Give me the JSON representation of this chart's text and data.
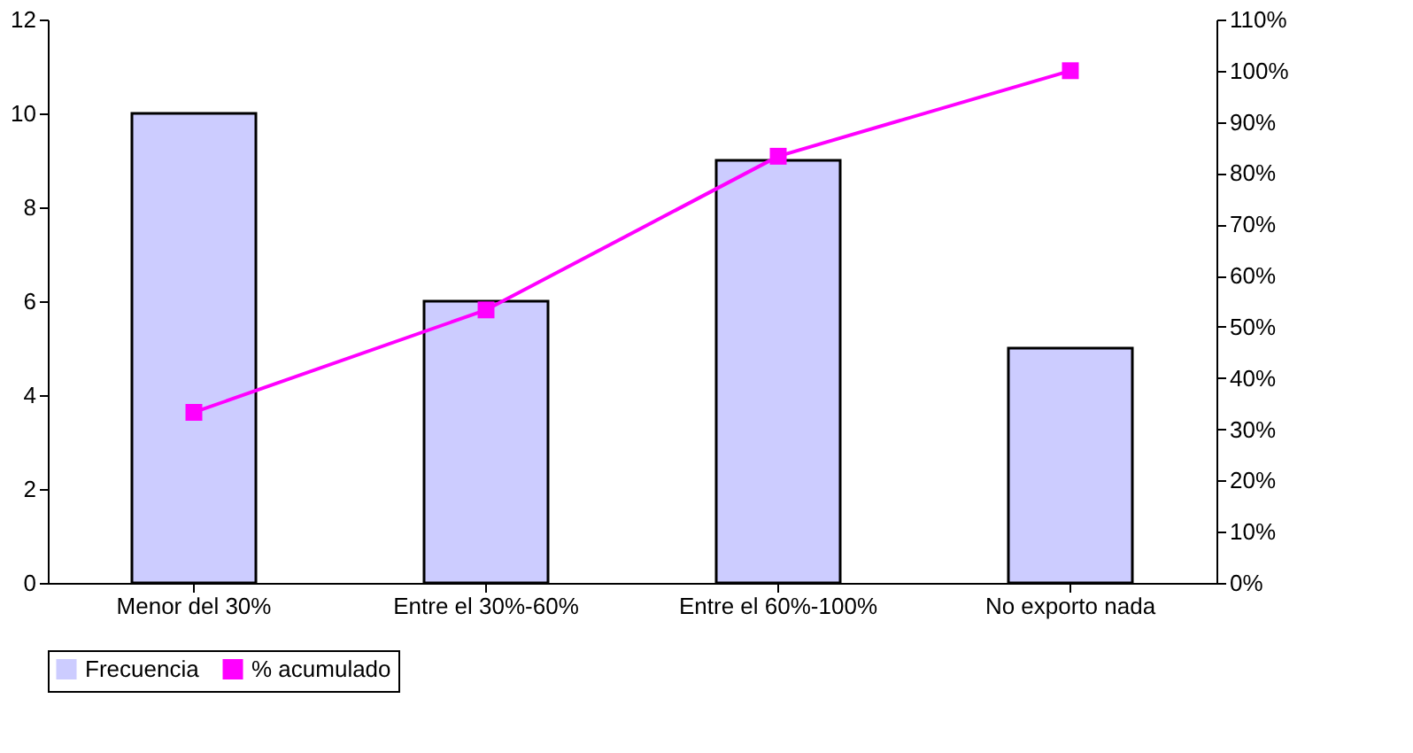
{
  "chart_data": {
    "type": "bar",
    "categories": [
      "Menor del 30%",
      "Entre el 30%-60%",
      "Entre el 60%-100%",
      "No exporto nada"
    ],
    "series": [
      {
        "name": "Frecuencia",
        "color": "#ccccff",
        "values": [
          10,
          6,
          9,
          5
        ]
      },
      {
        "name": "% acumulado",
        "type": "line",
        "axis": "y2",
        "color": "#ff00ff",
        "values": [
          33.3,
          53.3,
          83.3,
          100
        ]
      }
    ],
    "ylim": [
      0,
      12
    ],
    "yticks": [
      0,
      2,
      4,
      6,
      8,
      10,
      12
    ],
    "y2lim": [
      0,
      110
    ],
    "y2ticks": [
      {
        "value": 0,
        "label": "0%"
      },
      {
        "value": 10,
        "label": "10%"
      },
      {
        "value": 20,
        "label": "20%"
      },
      {
        "value": 30,
        "label": "30%"
      },
      {
        "value": 40,
        "label": "40%"
      },
      {
        "value": 50,
        "label": "50%"
      },
      {
        "value": 60,
        "label": "60%"
      },
      {
        "value": 70,
        "label": "70%"
      },
      {
        "value": 80,
        "label": "80%"
      },
      {
        "value": 90,
        "label": "90%"
      },
      {
        "value": 100,
        "label": "100%"
      },
      {
        "value": 110,
        "label": "110%"
      }
    ],
    "grid": false,
    "legend": "bottom",
    "marker": "square"
  }
}
